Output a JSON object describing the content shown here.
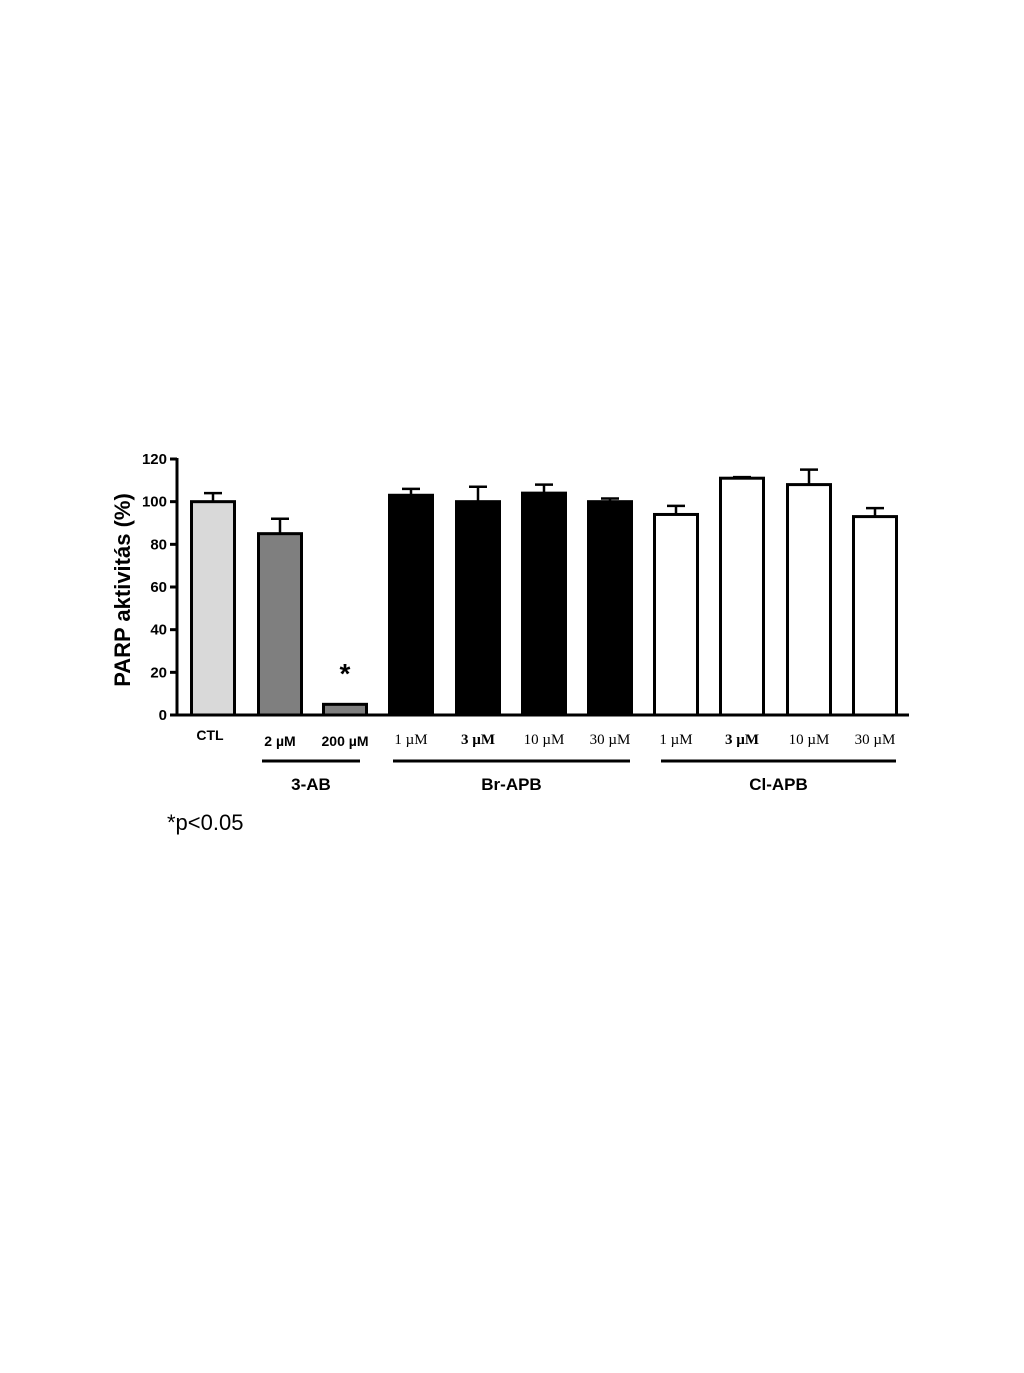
{
  "chart_data": {
    "type": "bar",
    "ylabel": "PARP aktivitás (%)",
    "ylim": [
      0,
      120
    ],
    "yticks": [
      "0",
      "20",
      "40",
      "60",
      "80",
      "100",
      "120"
    ],
    "grid": false,
    "categories": [
      "CTL",
      "2 µM",
      "200 µM",
      "1 µM",
      "3  µM",
      "10 µM",
      "30 µM",
      "1 µM",
      "3  µM",
      "10 µM",
      "30 µM"
    ],
    "values": [
      100,
      85,
      5,
      103,
      100,
      104,
      100,
      94,
      111,
      108,
      93
    ],
    "errors": [
      4,
      7,
      0,
      3,
      7,
      4,
      1.5,
      4,
      0.5,
      7,
      4
    ],
    "colors": [
      "#d9d9d9",
      "#7f7f7f",
      "#7f7f7f",
      "#000000",
      "#000000",
      "#000000",
      "#000000",
      "#ffffff",
      "#ffffff",
      "#ffffff",
      "#ffffff"
    ],
    "groups": [
      {
        "label": "3-AB",
        "from": 1,
        "to": 2
      },
      {
        "label": "Br-APB",
        "from": 3,
        "to": 6
      },
      {
        "label": "Cl-APB",
        "from": 7,
        "to": 10
      }
    ],
    "annotations": [
      {
        "category_index": 2,
        "text": "*"
      }
    ]
  },
  "footnote": "*p<0.05"
}
